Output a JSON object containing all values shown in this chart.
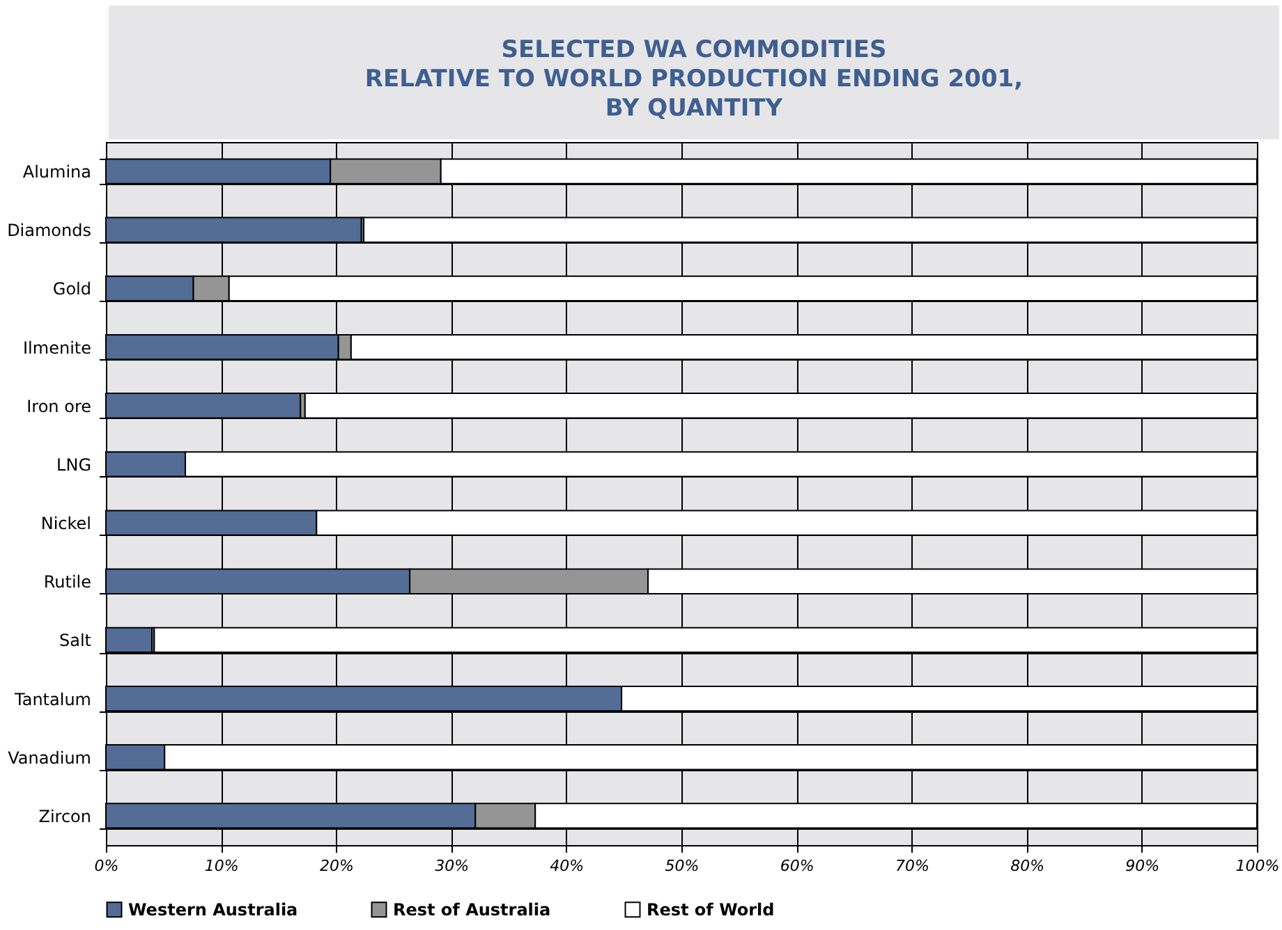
{
  "chart_data": {
    "type": "bar",
    "orientation": "horizontal",
    "stacked": true,
    "title": "SELECTED WA COMMODITIES\nRELATIVE TO WORLD PRODUCTION ENDING 2001,\nBY QUANTITY",
    "categories": [
      "Alumina",
      "Diamonds",
      "Gold",
      "Ilmenite",
      "Iron ore",
      "LNG",
      "Nickel",
      "Rutile",
      "Salt",
      "Tantalum",
      "Vanadium",
      "Zircon"
    ],
    "series": [
      {
        "name": "Western Australia",
        "color": "#536d96",
        "values": [
          19.5,
          22.2,
          7.6,
          20.2,
          16.9,
          6.9,
          18.3,
          26.4,
          4.0,
          44.8,
          5.1,
          32.1
        ]
      },
      {
        "name": "Rest of Australia",
        "color": "#959595",
        "values": [
          9.6,
          0.2,
          3.1,
          1.1,
          0.4,
          null,
          null,
          20.7,
          0.2,
          null,
          null,
          5.2
        ]
      },
      {
        "name": "Rest of World",
        "color": "#ffffff",
        "values": [
          70.9,
          77.6,
          89.3,
          78.7,
          82.7,
          93.1,
          81.7,
          52.9,
          95.8,
          55.2,
          94.9,
          62.7
        ]
      }
    ],
    "xlim": [
      0,
      100
    ],
    "xticks": [
      {
        "value": 0,
        "label": "0%"
      },
      {
        "value": 10,
        "label": "10%"
      },
      {
        "value": 20,
        "label": "20%"
      },
      {
        "value": 30,
        "label": "30%"
      },
      {
        "value": 40,
        "label": "40%"
      },
      {
        "value": 50,
        "label": "50%"
      },
      {
        "value": 60,
        "label": "60%"
      },
      {
        "value": 70,
        "label": "70%"
      },
      {
        "value": 80,
        "label": "80%"
      },
      {
        "value": 90,
        "label": "90%"
      },
      {
        "value": 100,
        "label": "100%"
      }
    ],
    "grid": true,
    "legend": "bottom"
  }
}
